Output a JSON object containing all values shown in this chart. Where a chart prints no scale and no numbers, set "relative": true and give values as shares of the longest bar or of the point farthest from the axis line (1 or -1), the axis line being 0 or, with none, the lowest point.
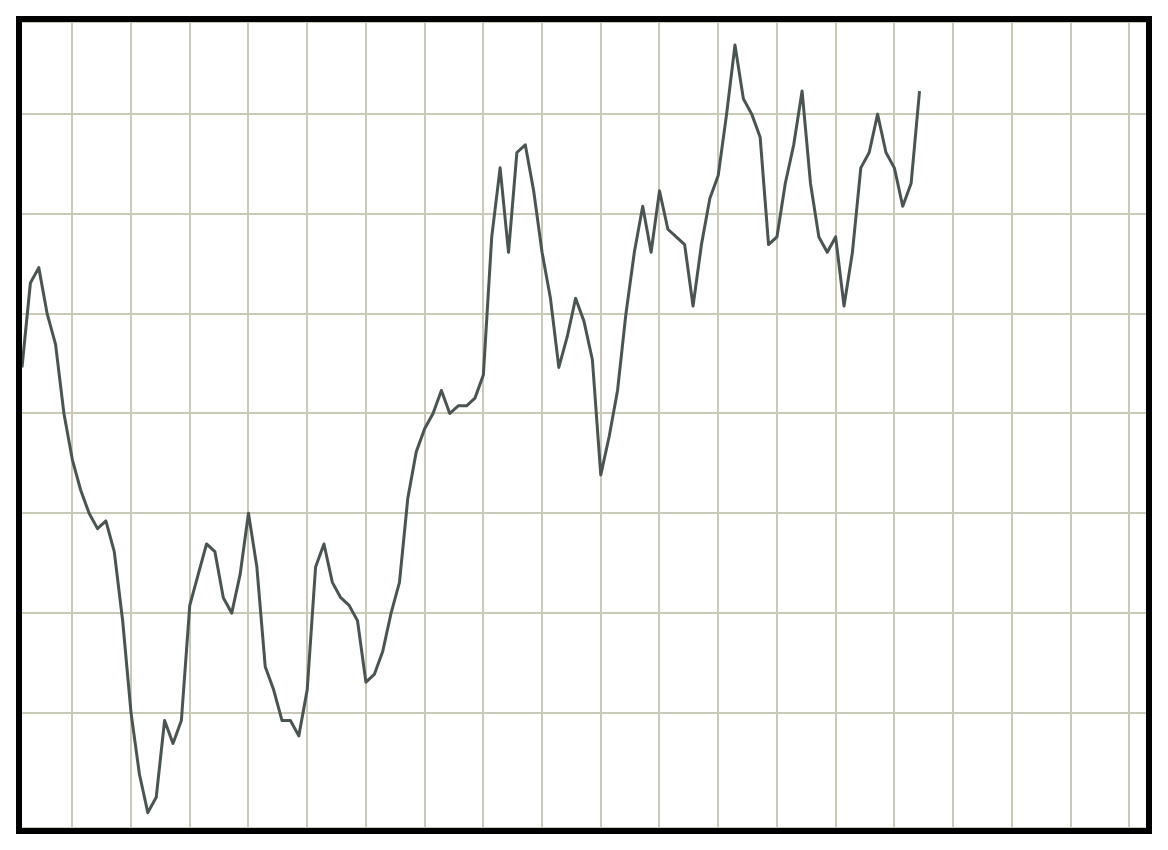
{
  "chart_data": {
    "type": "line",
    "relative": true,
    "grid": true,
    "marker": "none",
    "line_style": "solid",
    "categories": [
      null,
      null,
      null,
      null,
      null,
      null,
      null,
      null,
      null,
      null,
      null,
      null,
      null,
      null,
      null,
      null,
      null,
      null,
      null,
      null,
      null,
      null,
      null,
      null,
      null,
      null,
      null,
      null,
      null,
      null,
      null,
      null,
      null,
      null,
      null,
      null,
      null,
      null,
      null,
      null,
      null,
      null,
      null,
      null,
      null,
      null,
      null,
      null,
      null,
      null,
      null,
      null,
      null,
      null,
      null,
      null,
      null,
      null,
      null,
      null,
      null,
      null,
      null,
      null,
      null,
      null,
      null,
      null,
      null,
      null,
      null,
      null,
      null,
      null,
      null,
      null,
      null,
      null,
      null,
      null,
      null,
      null,
      null,
      null,
      null,
      null,
      null,
      null,
      null,
      null,
      null,
      null,
      null,
      null,
      null,
      null,
      null,
      null,
      null,
      null,
      null,
      null,
      null,
      null,
      null,
      null,
      null,
      null,
      null,
      null,
      null,
      null,
      null,
      null,
      null,
      null,
      null,
      null,
      null,
      null,
      null,
      null,
      null,
      null,
      null,
      null,
      null,
      null,
      null,
      null,
      null,
      null,
      null,
      null,
      null
    ],
    "series": [
      {
        "color": "#4a5450",
        "values": [
          0.58,
          0.69,
          0.71,
          0.65,
          0.61,
          0.52,
          0.46,
          0.42,
          0.39,
          0.37,
          0.38,
          0.34,
          0.25,
          0.13,
          0.05,
          0,
          0.02,
          0.12,
          0.09,
          0.12,
          0.27,
          0.31,
          0.35,
          0.34,
          0.28,
          0.26,
          0.31,
          0.39,
          0.32,
          0.19,
          0.16,
          0.12,
          0.12,
          0.1,
          0.16,
          0.32,
          0.35,
          0.3,
          0.28,
          0.27,
          0.25,
          0.17,
          0.18,
          0.21,
          0.26,
          0.3,
          0.41,
          0.47,
          0.5,
          0.52,
          0.55,
          0.52,
          0.53,
          0.53,
          0.54,
          0.57,
          0.75,
          0.84,
          0.73,
          0.86,
          0.87,
          0.81,
          0.73,
          0.67,
          0.58,
          0.62,
          0.67,
          0.64,
          0.59,
          0.44,
          0.49,
          0.55,
          0.65,
          0.73,
          0.79,
          0.73,
          0.81,
          0.76,
          0.75,
          0.74,
          0.66,
          0.74,
          0.8,
          0.83,
          0.91,
          1,
          0.93,
          0.91,
          0.88,
          0.74,
          0.75,
          0.82,
          0.87,
          0.94,
          0.82,
          0.75,
          0.73,
          0.75,
          0.66,
          0.73,
          0.84,
          0.86,
          0.91,
          0.86,
          0.84,
          0.79,
          0.82,
          0.94,
          null,
          null,
          null,
          null,
          null,
          null,
          null,
          null,
          null,
          null,
          null,
          null,
          null,
          null,
          null,
          null,
          null,
          null,
          null,
          null,
          null,
          null,
          null,
          null,
          null,
          null,
          null
        ]
      }
    ]
  }
}
